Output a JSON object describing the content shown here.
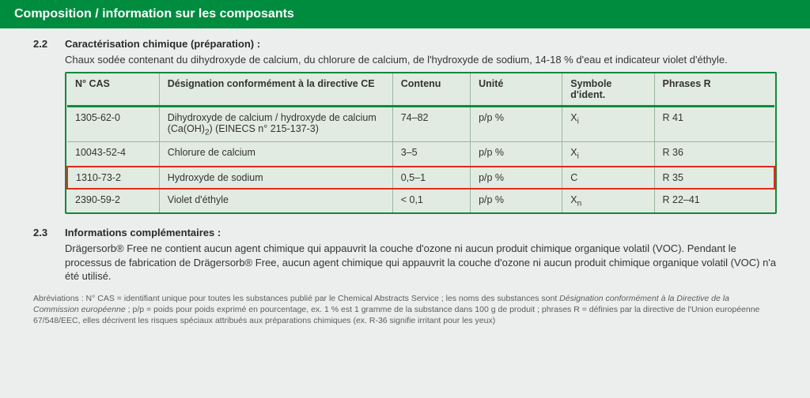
{
  "banner_title": "Composition / information sur les composants",
  "section22": {
    "num": "2.2",
    "heading": "Caractérisation chimique (préparation) :",
    "text": "Chaux sodée contenant du dihydroxyde de calcium, du chlorure de calcium, de l'hydroxyde de sodium, 14-18 % d'eau et indicateur violet d'éthyle."
  },
  "table": {
    "columns": [
      "N° CAS",
      "Désignation conformément à la directive CE",
      "Contenu",
      "Unité",
      "Symbole d'ident.",
      "Phrases R"
    ],
    "col_widths": [
      "13%",
      "33%",
      "11%",
      "13%",
      "13%",
      "17%"
    ],
    "rows": [
      {
        "cas": "1305-62-0",
        "desig_html": "Dihydroxyde de calcium / hydroxyde de calcium (Ca(OH)<sub>2</sub>) (EINECS n° 215-137-3)",
        "contenu": "74–82",
        "unite": "p/p %",
        "sym_html": "X<sub>i</sub>",
        "r": "R 41",
        "hl": false
      },
      {
        "cas": "10043-52-4",
        "desig_html": "Chlorure de calcium",
        "contenu": "3–5",
        "unite": "p/p %",
        "sym_html": "X<sub>i</sub>",
        "r": "R 36",
        "hl": false
      },
      {
        "cas": "1310-73-2",
        "desig_html": "Hydroxyde de sodium",
        "contenu": "0,5–1",
        "unite": "p/p %",
        "sym_html": "C",
        "r": "R 35",
        "hl": true
      },
      {
        "cas": "2390-59-2",
        "desig_html": "Violet d'éthyle",
        "contenu": "< 0,1",
        "unite": "p/p %",
        "sym_html": "X<sub>n</sub>",
        "r": "R 22–41",
        "hl": false
      }
    ],
    "border_color": "#0f8a3d",
    "bg_color": "#e2ebe1",
    "highlight_color": "#e22b1f"
  },
  "section23": {
    "num": "2.3",
    "heading": "Informations complémentaires :",
    "text": "Drägersorb® Free ne contient aucun agent chimique qui appauvrit la couche d'ozone ni aucun produit chimique organique volatil (VOC). Pendant le processus de fabrication de Drägersorb® Free, aucun agent chimique qui appauvrit la couche d'ozone ni aucun produit chimique organique volatil (VOC) n'a été utilisé."
  },
  "abbr_html": "Abréviations : N° CAS = identifiant unique pour toutes les substances publié par le Chemical Abstracts Service ; les noms des substances sont <em>Désignation conformément à la Directive de la Commission européenne</em> ; p/p = poids pour poids exprimé en pourcentage, ex. 1 % est 1 gramme de la substance dans 100 g de produit ; phrases R = définies par la directive de l'Union européenne 67/548/EEC, elles décrivent les risques spéciaux attribués aux préparations chimiques (ex. R-36 signifie irritant pour les yeux)"
}
